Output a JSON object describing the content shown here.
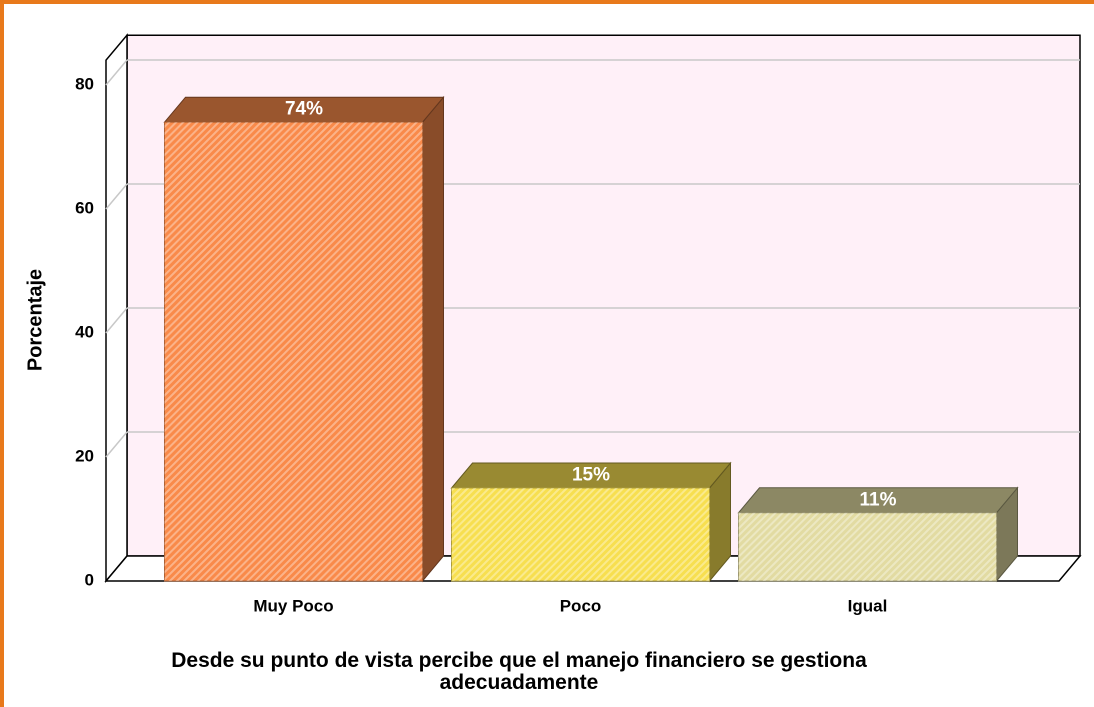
{
  "chart_data": {
    "type": "bar3d",
    "categories": [
      "Muy Poco",
      "Poco",
      "Igual"
    ],
    "values": [
      74,
      15,
      11
    ],
    "value_labels": [
      "74%",
      "15%",
      "11%"
    ],
    "colors": [
      "#f98a4a",
      "#f7df50",
      "#e2dba2"
    ],
    "y_label": "Porcentaje",
    "x_label": "Desde su punto de vista percibe que el manejo financiero se gestiona adecuadamente",
    "ylim": [
      0,
      84
    ],
    "yticks": [
      0,
      20,
      40,
      60,
      80
    ],
    "grid": true
  }
}
